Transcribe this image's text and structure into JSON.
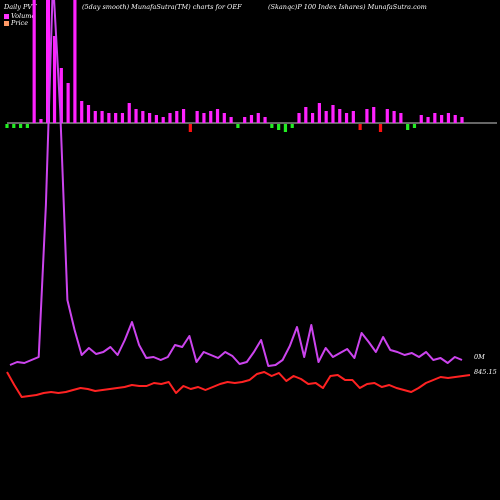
{
  "header": {
    "left": "Daily PVT",
    "middle": "(5day smooth) MunafaSutra(TM) charts for OEF",
    "right": "(Skanqc)P 100  Index Ishares) MunafaSutra.com"
  },
  "chart_data": {
    "type": "line",
    "legend": [
      {
        "label": "Volume",
        "color": "#ff33ff"
      },
      {
        "label": "Price",
        "color": "#ff9966"
      }
    ],
    "colors": {
      "background": "#000000",
      "pvt_line": "#cc44ee",
      "price_line": "#ff2222",
      "bar_pos_up": "#ff22ff",
      "bar_pos_down": "#ff1111",
      "bar_neg_up": "#22ee22",
      "bar_neg_down": "#ee2222",
      "baseline": "#cccccc"
    },
    "labels": {
      "volume_last": "0M",
      "price_last": "845.15"
    },
    "bars": [
      {
        "v": 4,
        "s": "n",
        "c": "g"
      },
      {
        "v": 4,
        "s": "n",
        "c": "g"
      },
      {
        "v": 4,
        "s": "n",
        "c": "g"
      },
      {
        "v": 4,
        "s": "n",
        "c": "g"
      },
      {
        "v": 130,
        "s": "p",
        "c": "m"
      },
      {
        "v": 4,
        "s": "p",
        "c": "m"
      },
      {
        "v": 4,
        "s": "p",
        "c": "m"
      },
      {
        "v": 87,
        "s": "p",
        "c": "m"
      },
      {
        "v": 55,
        "s": "p",
        "c": "m"
      },
      {
        "v": 40,
        "s": "p",
        "c": "m"
      },
      {
        "v": 130,
        "s": "p",
        "c": "m"
      },
      {
        "v": 22,
        "s": "p",
        "c": "m"
      },
      {
        "v": 18,
        "s": "p",
        "c": "m"
      },
      {
        "v": 12,
        "s": "p",
        "c": "m"
      },
      {
        "v": 12,
        "s": "p",
        "c": "m"
      },
      {
        "v": 10,
        "s": "p",
        "c": "m"
      },
      {
        "v": 10,
        "s": "p",
        "c": "m"
      },
      {
        "v": 10,
        "s": "p",
        "c": "m"
      },
      {
        "v": 20,
        "s": "p",
        "c": "m"
      },
      {
        "v": 14,
        "s": "p",
        "c": "m"
      },
      {
        "v": 12,
        "s": "p",
        "c": "m"
      },
      {
        "v": 10,
        "s": "p",
        "c": "m"
      },
      {
        "v": 8,
        "s": "p",
        "c": "m"
      },
      {
        "v": 6,
        "s": "p",
        "c": "m"
      },
      {
        "v": 10,
        "s": "p",
        "c": "m"
      },
      {
        "v": 12,
        "s": "p",
        "c": "m"
      },
      {
        "v": 14,
        "s": "p",
        "c": "m"
      },
      {
        "v": 8,
        "s": "n",
        "c": "r"
      },
      {
        "v": 12,
        "s": "p",
        "c": "m"
      },
      {
        "v": 10,
        "s": "p",
        "c": "m"
      },
      {
        "v": 12,
        "s": "p",
        "c": "m"
      },
      {
        "v": 14,
        "s": "p",
        "c": "m"
      },
      {
        "v": 10,
        "s": "p",
        "c": "m"
      },
      {
        "v": 6,
        "s": "p",
        "c": "m"
      },
      {
        "v": 4,
        "s": "n",
        "c": "g"
      },
      {
        "v": 6,
        "s": "p",
        "c": "m"
      },
      {
        "v": 8,
        "s": "p",
        "c": "m"
      },
      {
        "v": 10,
        "s": "p",
        "c": "m"
      },
      {
        "v": 6,
        "s": "p",
        "c": "m"
      },
      {
        "v": 4,
        "s": "n",
        "c": "g"
      },
      {
        "v": 6,
        "s": "n",
        "c": "g"
      },
      {
        "v": 8,
        "s": "n",
        "c": "g"
      },
      {
        "v": 4,
        "s": "n",
        "c": "g"
      },
      {
        "v": 10,
        "s": "p",
        "c": "m"
      },
      {
        "v": 16,
        "s": "p",
        "c": "m"
      },
      {
        "v": 10,
        "s": "p",
        "c": "m"
      },
      {
        "v": 20,
        "s": "p",
        "c": "m"
      },
      {
        "v": 12,
        "s": "p",
        "c": "m"
      },
      {
        "v": 18,
        "s": "p",
        "c": "m"
      },
      {
        "v": 14,
        "s": "p",
        "c": "m"
      },
      {
        "v": 10,
        "s": "p",
        "c": "m"
      },
      {
        "v": 12,
        "s": "p",
        "c": "m"
      },
      {
        "v": 6,
        "s": "n",
        "c": "r"
      },
      {
        "v": 14,
        "s": "p",
        "c": "m"
      },
      {
        "v": 16,
        "s": "p",
        "c": "m"
      },
      {
        "v": 8,
        "s": "n",
        "c": "r"
      },
      {
        "v": 14,
        "s": "p",
        "c": "m"
      },
      {
        "v": 12,
        "s": "p",
        "c": "m"
      },
      {
        "v": 10,
        "s": "p",
        "c": "m"
      },
      {
        "v": 6,
        "s": "n",
        "c": "g"
      },
      {
        "v": 4,
        "s": "n",
        "c": "g"
      },
      {
        "v": 8,
        "s": "p",
        "c": "m"
      },
      {
        "v": 6,
        "s": "p",
        "c": "m"
      },
      {
        "v": 10,
        "s": "p",
        "c": "m"
      },
      {
        "v": 8,
        "s": "p",
        "c": "m"
      },
      {
        "v": 10,
        "s": "p",
        "c": "m"
      },
      {
        "v": 8,
        "s": "p",
        "c": "m"
      },
      {
        "v": 6,
        "s": "p",
        "c": "m"
      }
    ],
    "bars_spike": {
      "index": 11,
      "v": 140
    },
    "pvt": [
      365,
      362,
      363,
      360,
      357,
      205,
      -20,
      110,
      300,
      330,
      355,
      348,
      354,
      352,
      347,
      355,
      340,
      322,
      345,
      358,
      357,
      360,
      357,
      345,
      347,
      336,
      362,
      352,
      355,
      358,
      352,
      356,
      364,
      362,
      352,
      340,
      366,
      365,
      360,
      346,
      327,
      357,
      325,
      362,
      348,
      357,
      353,
      349,
      358,
      333,
      342,
      352,
      337,
      350,
      352,
      355,
      353,
      357,
      352,
      360,
      358,
      363,
      357,
      360
    ],
    "price": [
      372,
      385,
      397,
      396,
      395,
      393,
      392,
      393,
      392,
      390,
      388,
      389,
      391,
      390,
      389,
      388,
      387,
      385,
      386,
      386,
      383,
      384,
      382,
      393,
      386,
      389,
      387,
      390,
      387,
      384,
      382,
      383,
      382,
      380,
      374,
      372,
      376,
      373,
      381,
      376,
      379,
      384,
      383,
      388,
      376,
      375,
      380,
      380,
      388,
      384,
      383,
      387,
      385,
      388,
      390,
      392,
      388,
      383,
      380,
      377,
      378,
      377,
      376,
      375
    ]
  }
}
